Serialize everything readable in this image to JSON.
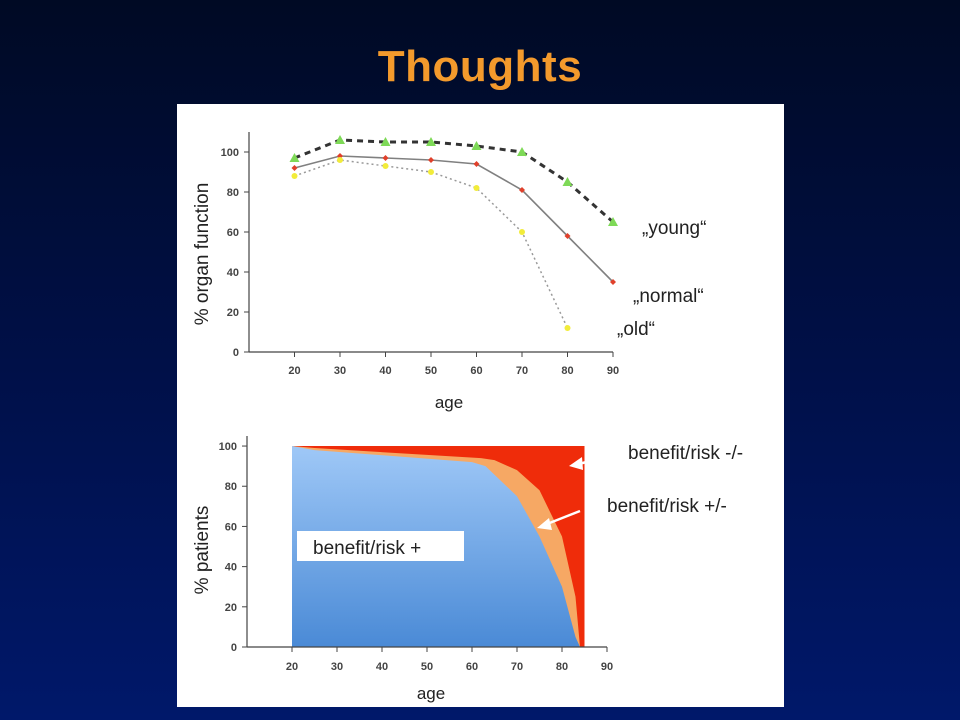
{
  "slide": {
    "title": "Thoughts"
  },
  "colors": {
    "background": "#000f44",
    "title": "#f39a2c",
    "young": "#7ed957",
    "normal": "#e0402b",
    "old": "#f2ec3a",
    "benefit_plus": "#5b9de0",
    "benefit_mixed": "#f6a864",
    "benefit_minus": "#ef2c0a"
  },
  "chart_data": [
    {
      "type": "line",
      "xlabel": "age",
      "ylabel": "% organ function",
      "xlim": [
        10,
        90
      ],
      "ylim": [
        0,
        110
      ],
      "x_ticks": [
        20,
        30,
        40,
        50,
        60,
        70,
        80,
        90
      ],
      "y_ticks": [
        0,
        20,
        40,
        60,
        80,
        100
      ],
      "grid": false,
      "series": [
        {
          "name": "„young“",
          "style": "dashed",
          "marker": "triangle",
          "x": [
            20,
            30,
            40,
            50,
            60,
            70,
            80,
            90
          ],
          "y": [
            97,
            106,
            105,
            105,
            103,
            100,
            85,
            65
          ]
        },
        {
          "name": "„normal“",
          "style": "solid",
          "marker": "diamond",
          "x": [
            20,
            30,
            40,
            50,
            60,
            70,
            80,
            90
          ],
          "y": [
            92,
            98,
            97,
            96,
            94,
            81,
            58,
            35
          ]
        },
        {
          "name": "„old“",
          "style": "dotted",
          "marker": "circle",
          "x": [
            20,
            30,
            40,
            50,
            60,
            70,
            80
          ],
          "y": [
            88,
            96,
            93,
            90,
            82,
            60,
            12
          ]
        }
      ]
    },
    {
      "type": "area",
      "xlabel": "age",
      "ylabel": "% patients",
      "xlim": [
        10,
        90
      ],
      "ylim": [
        0,
        105
      ],
      "x_ticks": [
        20,
        30,
        40,
        50,
        60,
        70,
        80,
        90
      ],
      "y_ticks": [
        0,
        20,
        40,
        60,
        80,
        100
      ],
      "grid": false,
      "series": [
        {
          "name": "benefit/risk +",
          "x": [
            20,
            25,
            60,
            63,
            70,
            75,
            80,
            83,
            84,
            85
          ],
          "y": [
            100,
            98,
            92,
            90,
            75,
            55,
            30,
            5,
            0,
            0
          ]
        },
        {
          "name": "benefit/risk +/-",
          "x": [
            20,
            25,
            62,
            65,
            70,
            75,
            80,
            83,
            84,
            85
          ],
          "y": [
            100,
            99,
            94,
            93,
            88,
            78,
            55,
            25,
            0,
            0
          ]
        },
        {
          "name": "benefit/risk -/-",
          "x": [
            20,
            85
          ],
          "y": [
            100,
            100
          ]
        }
      ]
    }
  ]
}
